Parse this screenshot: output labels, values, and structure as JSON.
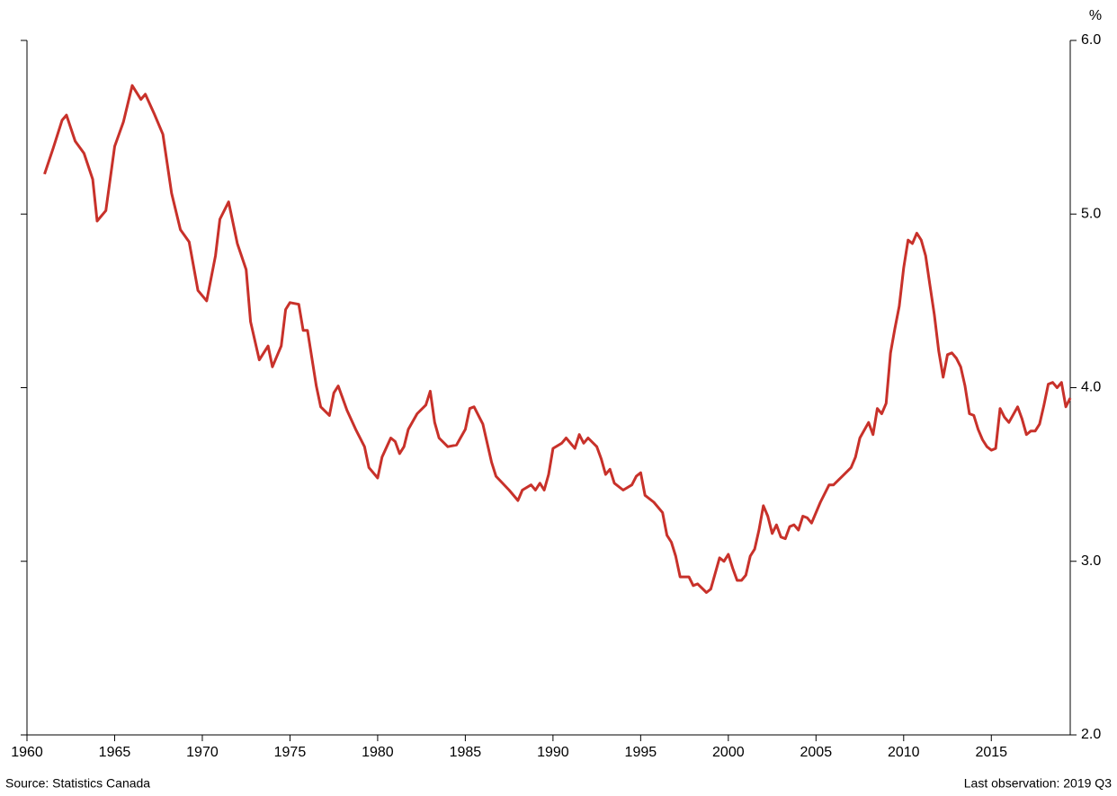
{
  "chart_data": {
    "type": "line",
    "y_unit": "%",
    "source": "Source: Statistics Canada",
    "note": "Last observation: 2019 Q3",
    "xlim": [
      1960,
      2019.5
    ],
    "xticks": [
      1960,
      1965,
      1970,
      1975,
      1980,
      1985,
      1990,
      1995,
      2000,
      2005,
      2010,
      2015
    ],
    "ylim": [
      2,
      6
    ],
    "yticks": [
      {
        "value": 2,
        "label": "2.0"
      },
      {
        "value": 3,
        "label": "3.0"
      },
      {
        "value": 4,
        "label": "4.0"
      },
      {
        "value": 5,
        "label": "5.0"
      },
      {
        "value": 6,
        "label": "6.0"
      }
    ],
    "color": "#c8312a",
    "x": [
      1961.0,
      1961.5,
      1962.0,
      1962.25,
      1962.75,
      1963.25,
      1963.75,
      1964.0,
      1964.5,
      1965.0,
      1965.5,
      1966.0,
      1966.5,
      1966.75,
      1967.25,
      1967.75,
      1968.25,
      1968.75,
      1969.25,
      1969.75,
      1970.25,
      1970.75,
      1971.0,
      1971.5,
      1972.0,
      1972.5,
      1972.75,
      1973.25,
      1973.75,
      1974.0,
      1974.5,
      1974.75,
      1975.0,
      1975.5,
      1975.75,
      1976.0,
      1976.5,
      1976.75,
      1977.25,
      1977.5,
      1977.75,
      1978.25,
      1978.75,
      1979.25,
      1979.5,
      1980.0,
      1980.25,
      1980.75,
      1981.0,
      1981.25,
      1981.5,
      1981.75,
      1982.25,
      1982.75,
      1983.0,
      1983.25,
      1983.5,
      1984.0,
      1984.5,
      1985.0,
      1985.25,
      1985.5,
      1986.0,
      1986.5,
      1986.75,
      1987.5,
      1988.0,
      1988.25,
      1988.75,
      1989.0,
      1989.25,
      1989.5,
      1989.75,
      1990.0,
      1990.5,
      1990.75,
      1991.25,
      1991.5,
      1991.75,
      1992.0,
      1992.5,
      1992.75,
      1993.0,
      1993.25,
      1993.5,
      1994.0,
      1994.5,
      1994.75,
      1995.0,
      1995.25,
      1995.75,
      1996.25,
      1996.5,
      1996.75,
      1997.0,
      1997.25,
      1997.75,
      1998.0,
      1998.25,
      1998.75,
      1999.0,
      1999.5,
      1999.75,
      2000.0,
      2000.25,
      2000.5,
      2000.75,
      2001.0,
      2001.25,
      2001.5,
      2001.75,
      2002.0,
      2002.25,
      2002.5,
      2002.75,
      2003.0,
      2003.25,
      2003.5,
      2003.75,
      2004.0,
      2004.25,
      2004.5,
      2004.75,
      2005.25,
      2005.75,
      2006.0,
      2006.5,
      2007.0,
      2007.25,
      2007.5,
      2008.0,
      2008.25,
      2008.5,
      2008.75,
      2009.0,
      2009.25,
      2009.5,
      2009.75,
      2010.0,
      2010.25,
      2010.5,
      2010.75,
      2011.0,
      2011.25,
      2011.5,
      2011.75,
      2012.0,
      2012.25,
      2012.5,
      2012.75,
      2013.0,
      2013.25,
      2013.5,
      2013.75,
      2014.0,
      2014.25,
      2014.5,
      2014.75,
      2015.0,
      2015.25,
      2015.5,
      2015.75,
      2016.0,
      2016.5,
      2016.75,
      2017.0,
      2017.25,
      2017.5,
      2017.75,
      2018.0,
      2018.25,
      2018.5,
      2018.75,
      2019.0,
      2019.25,
      2019.5
    ],
    "values": [
      5.23,
      5.38,
      5.54,
      5.57,
      5.42,
      5.35,
      5.2,
      4.96,
      5.02,
      5.39,
      5.53,
      5.74,
      5.66,
      5.69,
      5.58,
      5.46,
      5.12,
      4.91,
      4.84,
      4.56,
      4.5,
      4.76,
      4.97,
      5.07,
      4.83,
      4.68,
      4.38,
      4.16,
      4.24,
      4.12,
      4.24,
      4.45,
      4.49,
      4.48,
      4.33,
      4.33,
      4.01,
      3.89,
      3.84,
      3.97,
      4.01,
      3.87,
      3.76,
      3.66,
      3.54,
      3.48,
      3.6,
      3.71,
      3.69,
      3.62,
      3.66,
      3.76,
      3.85,
      3.9,
      3.98,
      3.8,
      3.71,
      3.66,
      3.67,
      3.76,
      3.88,
      3.89,
      3.79,
      3.57,
      3.49,
      3.41,
      3.35,
      3.41,
      3.44,
      3.41,
      3.45,
      3.41,
      3.5,
      3.65,
      3.68,
      3.71,
      3.65,
      3.73,
      3.68,
      3.71,
      3.66,
      3.59,
      3.5,
      3.53,
      3.45,
      3.41,
      3.44,
      3.49,
      3.51,
      3.38,
      3.34,
      3.28,
      3.15,
      3.11,
      3.03,
      2.91,
      2.91,
      2.86,
      2.87,
      2.82,
      2.84,
      3.02,
      3.0,
      3.04,
      2.96,
      2.89,
      2.89,
      2.92,
      3.03,
      3.07,
      3.18,
      3.32,
      3.26,
      3.16,
      3.21,
      3.14,
      3.13,
      3.2,
      3.21,
      3.18,
      3.26,
      3.25,
      3.22,
      3.34,
      3.44,
      3.44,
      3.49,
      3.54,
      3.6,
      3.71,
      3.8,
      3.73,
      3.88,
      3.85,
      3.91,
      4.2,
      4.34,
      4.47,
      4.69,
      4.85,
      4.83,
      4.89,
      4.85,
      4.76,
      4.59,
      4.42,
      4.21,
      4.06,
      4.19,
      4.2,
      4.17,
      4.12,
      4.01,
      3.85,
      3.84,
      3.76,
      3.7,
      3.66,
      3.64,
      3.65,
      3.88,
      3.83,
      3.8,
      3.89,
      3.82,
      3.73,
      3.75,
      3.75,
      3.79,
      3.9,
      4.02,
      4.03,
      4.0,
      4.03,
      3.89,
      3.94
    ]
  }
}
